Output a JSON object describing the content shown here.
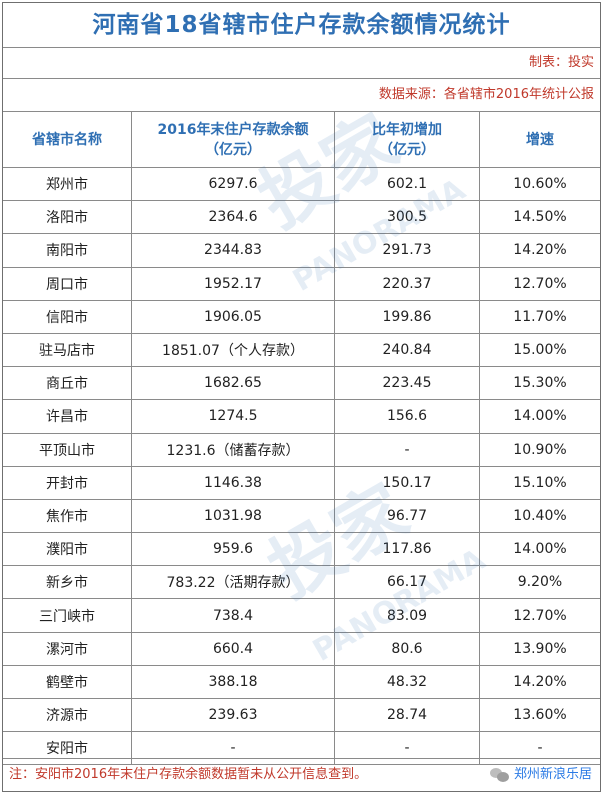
{
  "title": "河南省18省辖市住户存款余额情况统计",
  "producer": "制表：投实",
  "source": "数据来源：各省辖市2016年统计公报",
  "columns": {
    "city": "省辖市名称",
    "balance_line1": "2016年末住户存款余额",
    "balance_line2": "（亿元）",
    "increase_line1": "比年初增加",
    "increase_line2": "（亿元）",
    "growth": "增速"
  },
  "rows": [
    {
      "city": "郑州市",
      "balance": "6297.6",
      "increase": "602.1",
      "growth": "10.60%"
    },
    {
      "city": "洛阳市",
      "balance": "2364.6",
      "increase": "300.5",
      "growth": "14.50%"
    },
    {
      "city": "南阳市",
      "balance": "2344.83",
      "increase": "291.73",
      "growth": "14.20%"
    },
    {
      "city": "周口市",
      "balance": "1952.17",
      "increase": "220.37",
      "growth": "12.70%"
    },
    {
      "city": "信阳市",
      "balance": "1906.05",
      "increase": "199.86",
      "growth": "11.70%"
    },
    {
      "city": "驻马店市",
      "balance": "1851.07（个人存款）",
      "increase": "240.84",
      "growth": "15.00%"
    },
    {
      "city": "商丘市",
      "balance": "1682.65",
      "increase": "223.45",
      "growth": "15.30%"
    },
    {
      "city": "许昌市",
      "balance": "1274.5",
      "increase": "156.6",
      "growth": "14.00%"
    },
    {
      "city": "平顶山市",
      "balance": "1231.6（储蓄存款）",
      "increase": "-",
      "growth": "10.90%"
    },
    {
      "city": "开封市",
      "balance": "1146.38",
      "increase": "150.17",
      "growth": "15.10%"
    },
    {
      "city": "焦作市",
      "balance": "1031.98",
      "increase": "96.77",
      "growth": "10.40%"
    },
    {
      "city": "濮阳市",
      "balance": "959.6",
      "increase": "117.86",
      "growth": "14.00%"
    },
    {
      "city": "新乡市",
      "balance": "783.22（活期存款）",
      "increase": "66.17",
      "growth": "9.20%"
    },
    {
      "city": "三门峡市",
      "balance": "738.4",
      "increase": "83.09",
      "growth": "12.70%"
    },
    {
      "city": "漯河市",
      "balance": "660.4",
      "increase": "80.6",
      "growth": "13.90%"
    },
    {
      "city": "鹤壁市",
      "balance": "388.18",
      "increase": "48.32",
      "growth": "14.20%"
    },
    {
      "city": "济源市",
      "balance": "239.63",
      "increase": "28.74",
      "growth": "13.60%"
    },
    {
      "city": "安阳市",
      "balance": "-",
      "increase": "-",
      "growth": "-"
    }
  ],
  "note": "注：安阳市2016年末住户存款余额数据暂未从公开信息查到。",
  "watermark": {
    "brand": "投家",
    "latin": "PANORAMA"
  },
  "account_badge": "郑州新浪乐居",
  "icons": {
    "badge": "wechat-icon"
  },
  "colors": {
    "title": "#2f6fb3",
    "header": "#2f6fb3",
    "note": "#c0392b",
    "border": "#8a8a8a"
  }
}
